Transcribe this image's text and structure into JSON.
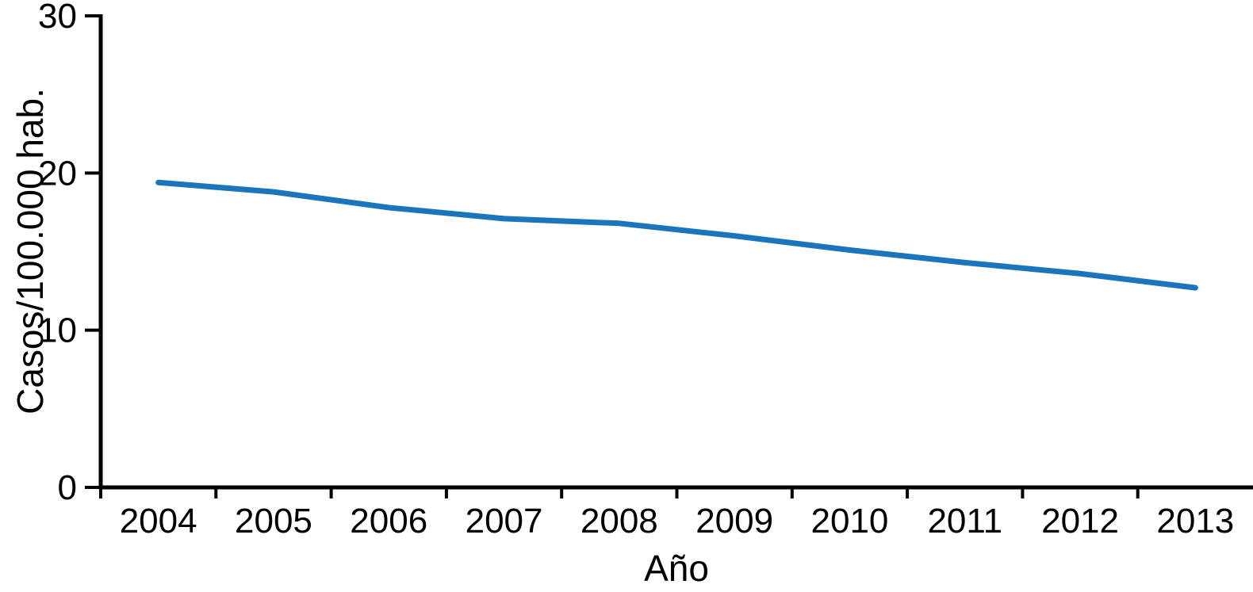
{
  "chart_data": {
    "type": "line",
    "title": "",
    "xlabel": "Año",
    "ylabel": "Casos/100.000 hab.",
    "x": [
      "2004",
      "2005",
      "2006",
      "2007",
      "2008",
      "2009",
      "2010",
      "2011",
      "2012",
      "2013"
    ],
    "series": [
      {
        "name": "Casos/100.000 hab.",
        "values": [
          19.4,
          18.8,
          17.8,
          17.1,
          16.8,
          16.0,
          15.1,
          14.3,
          13.6,
          12.7
        ]
      }
    ],
    "ylim": [
      0,
      30
    ],
    "yticks": [
      0,
      10,
      20,
      30
    ],
    "ytick_labels": [
      "0",
      "10",
      "20",
      "30"
    ],
    "grid": false,
    "legend": "none",
    "line_color": "#1B75BC",
    "axis_color": "#000000",
    "background": "#FFFFFF"
  }
}
